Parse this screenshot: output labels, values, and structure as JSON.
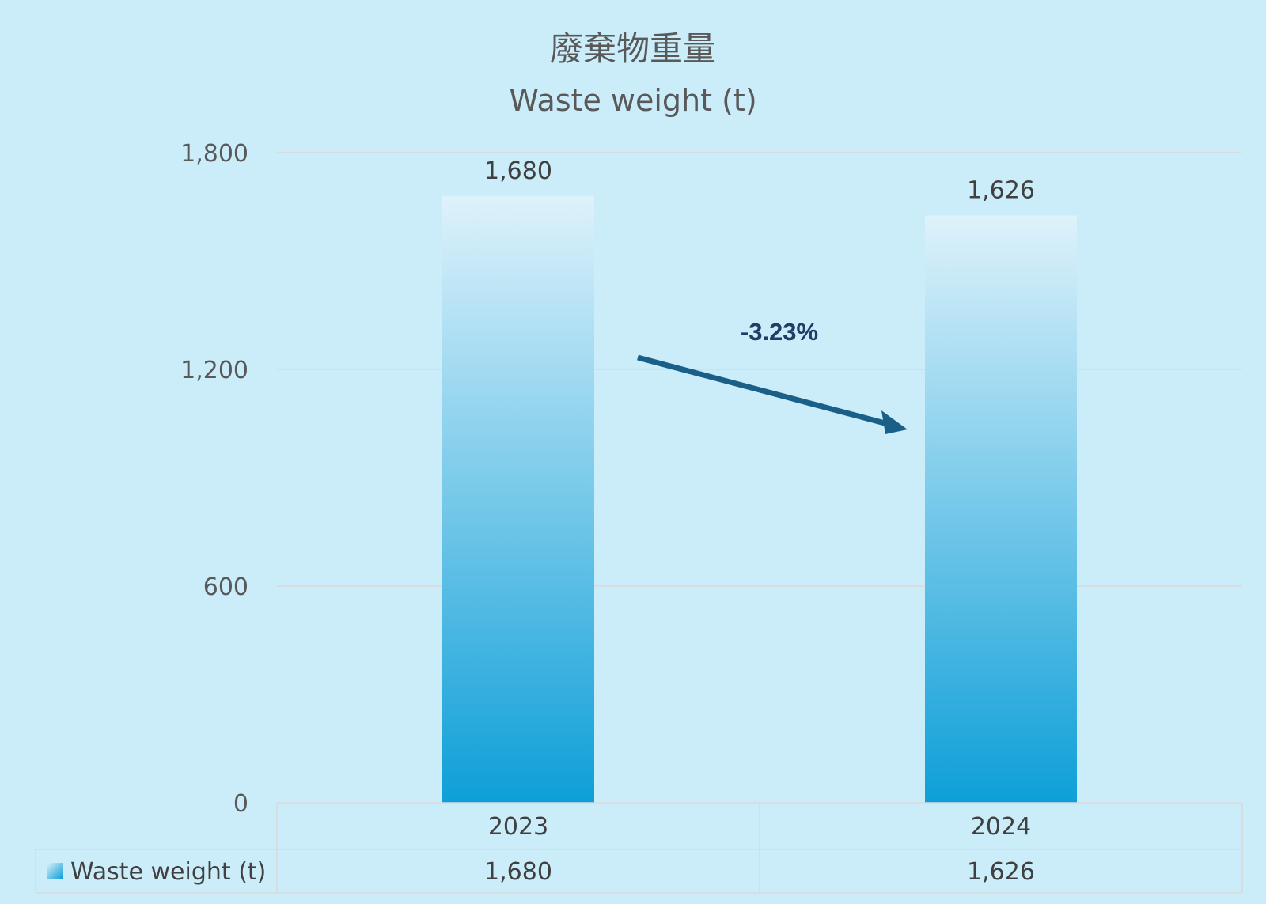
{
  "chart_data": {
    "type": "bar",
    "title": "廢棄物重量",
    "subtitle": "Waste weight (t)",
    "categories": [
      "2023",
      "2024"
    ],
    "series": [
      {
        "name": "Waste weight (t)",
        "values": [
          1680,
          1626
        ],
        "value_labels": [
          "1,680",
          "1,626"
        ]
      }
    ],
    "ylim": [
      0,
      1800
    ],
    "yticks": [
      0,
      600,
      1200,
      1800
    ],
    "ytick_labels": [
      "0",
      "600",
      "1,200",
      "1,800"
    ],
    "grid": true,
    "legend": "data-table-bottom",
    "annotation": {
      "text": "-3.23%",
      "from": "2023",
      "to": "2024"
    },
    "colors": {
      "bar_top": "#def2fb",
      "bar_bottom": "#0e9fd8",
      "arrow": "#1a5f87",
      "grid": "#d9d9d9"
    }
  }
}
